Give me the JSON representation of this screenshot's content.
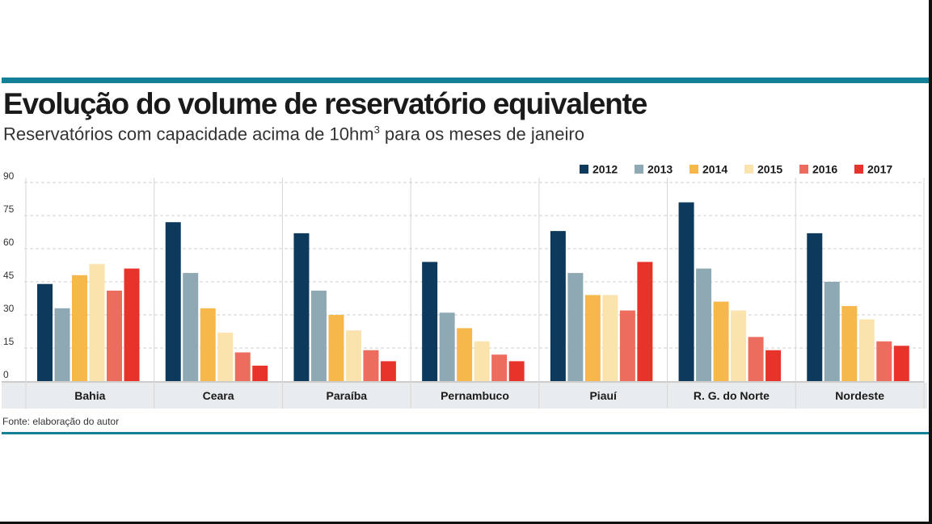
{
  "title": "Evolução do volume de reservatório equivalente",
  "subtitle": {
    "text": "Reservatórios com capacidade acima de 10hm",
    "superscript": "3",
    "suffix": " para os meses de janeiro"
  },
  "source": "Fonte: elaboração do autor",
  "colors": {
    "rule": "#147f96",
    "category_band": "#e8ecef",
    "grid": "#cfcfcf"
  },
  "chart_data": {
    "type": "bar",
    "categories": [
      "Bahia",
      "Ceara",
      "Paraíba",
      "Pernambuco",
      "Piauí",
      "R. G. do Norte",
      "Nordeste"
    ],
    "series": [
      {
        "name": "2012",
        "color": "#0d3a5c",
        "values": [
          44,
          72,
          67,
          54,
          68,
          81,
          67
        ]
      },
      {
        "name": "2013",
        "color": "#8fa9b4",
        "values": [
          33,
          49,
          41,
          31,
          49,
          51,
          45
        ]
      },
      {
        "name": "2014",
        "color": "#f7b84b",
        "values": [
          48,
          33,
          30,
          24,
          39,
          36,
          34
        ]
      },
      {
        "name": "2015",
        "color": "#fbe3ad",
        "values": [
          53,
          22,
          23,
          18,
          39,
          32,
          28
        ]
      },
      {
        "name": "2016",
        "color": "#ec6c5e",
        "values": [
          41,
          13,
          14,
          12,
          32,
          20,
          18
        ]
      },
      {
        "name": "2017",
        "color": "#e8332a",
        "values": [
          51,
          7,
          9,
          9,
          54,
          14,
          16
        ]
      }
    ],
    "yticks": [
      "0",
      "15",
      "30",
      "45",
      "60",
      "75",
      "90"
    ],
    "ylim": [
      0,
      90
    ],
    "legend_position": "top-right",
    "grid": true
  }
}
